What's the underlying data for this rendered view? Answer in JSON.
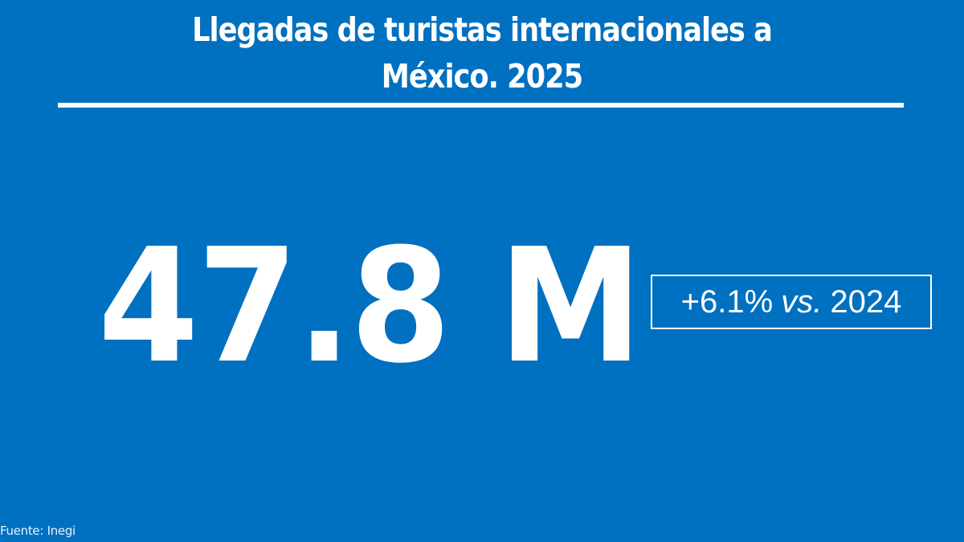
{
  "colors": {
    "background": "#0070C0",
    "foreground": "#FFFFFF"
  },
  "header": {
    "title_line1": "Llegadas de turistas internacionales a",
    "title_line2": "México. 2025"
  },
  "main": {
    "value": "47.8 M",
    "change": {
      "percent": "+6.1%",
      "vs_label": "vs.",
      "year": "2024"
    }
  },
  "footer": {
    "source": "Fuente: Inegi"
  }
}
